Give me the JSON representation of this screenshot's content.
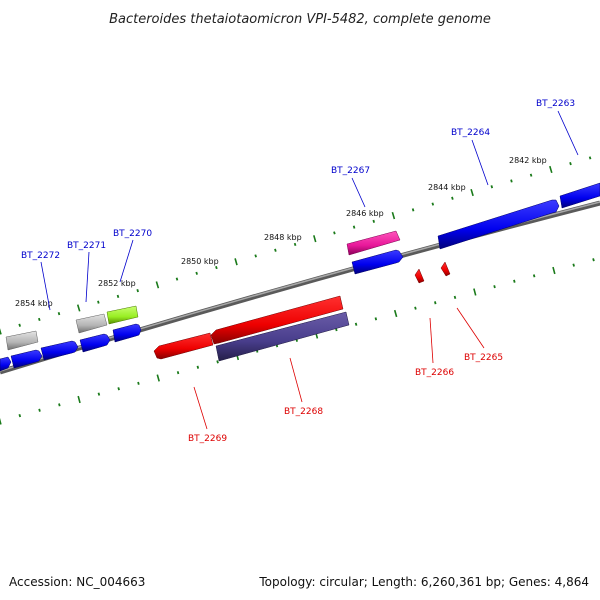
{
  "title": "Bacteroides thetaiotaomicron VPI-5482, complete genome",
  "accession": "Accession: NC_004663",
  "summary": "Topology: circular; Length: 6,260,361 bp; Genes: 4,864",
  "colors": {
    "backbone": "#808080",
    "tick": "#1a7a1a",
    "forward_label": "#0000cc",
    "reverse_label": "#dd0000"
  },
  "scale_labels": [
    "2842 kbp",
    "2844 kbp",
    "2846 kbp",
    "2848 kbp",
    "2850 kbp",
    "2852 kbp",
    "2854 kbp"
  ],
  "genes": [
    {
      "id": "BT_2263",
      "strand": "+"
    },
    {
      "id": "BT_2264",
      "strand": "+"
    },
    {
      "id": "BT_2265",
      "strand": "-"
    },
    {
      "id": "BT_2266",
      "strand": "-"
    },
    {
      "id": "BT_2267",
      "strand": "+"
    },
    {
      "id": "BT_2268",
      "strand": "-"
    },
    {
      "id": "BT_2269",
      "strand": "-"
    },
    {
      "id": "BT_2270",
      "strand": "+"
    },
    {
      "id": "BT_2271",
      "strand": "+"
    },
    {
      "id": "BT_2272",
      "strand": "+"
    }
  ]
}
